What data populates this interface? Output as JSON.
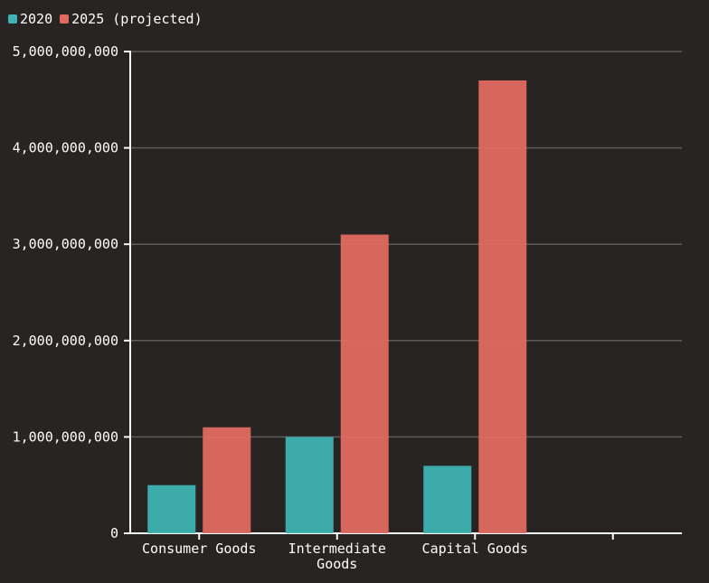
{
  "chart_data": {
    "type": "bar",
    "categories": [
      "Consumer Goods",
      "Intermediate Goods",
      "Capital Goods",
      ""
    ],
    "series": [
      {
        "name": "2020",
        "color": "#3fb3b3",
        "values": [
          500000000,
          1000000000,
          700000000,
          null
        ]
      },
      {
        "name": "2025 (projected)",
        "color": "#e06b60",
        "values": [
          1100000000,
          3100000000,
          4700000000,
          null
        ]
      }
    ],
    "ylim": [
      0,
      5000000000
    ],
    "yticks": [
      0,
      1000000000,
      2000000000,
      3000000000,
      4000000000,
      5000000000
    ],
    "ytick_labels": [
      "0",
      "1,000,000,000",
      "2,000,000,000",
      "3,000,000,000",
      "4,000,000,000",
      "5,000,000,000"
    ],
    "grid": true,
    "legend_position": "top-left",
    "title": "",
    "xlabel": "",
    "ylabel": ""
  }
}
